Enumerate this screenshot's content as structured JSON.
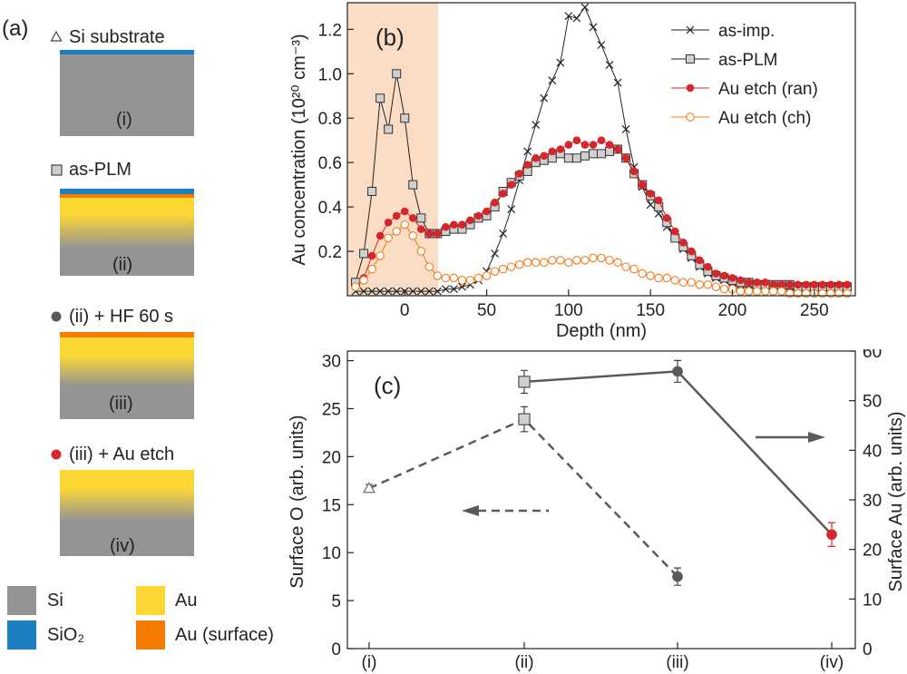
{
  "panel_a": {
    "label": "(a)",
    "samples": [
      {
        "marker": "triangle-open",
        "label": "Si substrate",
        "roman": "(i)"
      },
      {
        "marker": "square-gray",
        "label": "as-PLM",
        "roman": "(ii)"
      },
      {
        "marker": "circle-dark",
        "label": "(ii) + HF 60 s",
        "roman": "(iii)"
      },
      {
        "marker": "circle-red",
        "label": "(iii) + Au etch",
        "roman": "(iv)"
      }
    ],
    "legend": {
      "si": "Si",
      "au": "Au",
      "sio2": "SiO₂",
      "au_surface": "Au (surface)"
    }
  },
  "colors": {
    "si": "#949494",
    "sio2": "#1b7fc0",
    "au": "#fdd835",
    "au_surface": "#f57c00",
    "red": "#d7262b",
    "orange": "#f07c1a",
    "dark": "#5a5a5a",
    "shade": "#fbdcc4"
  },
  "chart_data": [
    {
      "type": "line",
      "panel_label": "(b)",
      "xlabel": "Depth (nm)",
      "ylabel": "Au concentration (10²⁰ cm⁻³)",
      "xlim": [
        -35,
        275
      ],
      "ylim": [
        0,
        1.32
      ],
      "xticks": [
        0,
        50,
        100,
        150,
        200,
        250
      ],
      "yticks": [
        0.2,
        0.4,
        0.6,
        0.8,
        1.0,
        1.2
      ],
      "xtick_labels": [
        "0",
        "50",
        "100",
        "150",
        "200",
        "250"
      ],
      "ytick_labels": [
        "0.2",
        "0.4",
        "0.6",
        "0.8",
        "1.0",
        "1.2"
      ],
      "shaded_region": [
        -35,
        20
      ],
      "legend_position": "top-right",
      "series": [
        {
          "name": "as-imp.",
          "marker": "x",
          "color": "#222222",
          "x": [
            -30,
            -25,
            -20,
            -15,
            -10,
            -5,
            0,
            5,
            10,
            15,
            20,
            25,
            30,
            35,
            40,
            45,
            50,
            55,
            60,
            65,
            70,
            75,
            80,
            85,
            90,
            95,
            100,
            105,
            110,
            115,
            120,
            125,
            130,
            135,
            140,
            145,
            150,
            155,
            160,
            165,
            170,
            175,
            180,
            185,
            190,
            195,
            200,
            205,
            210,
            215,
            220,
            225,
            230,
            235,
            240,
            245,
            250,
            255,
            260,
            265,
            270
          ],
          "values": [
            0.02,
            0.02,
            0.02,
            0.02,
            0.02,
            0.02,
            0.02,
            0.02,
            0.02,
            0.02,
            0.02,
            0.03,
            0.03,
            0.04,
            0.05,
            0.07,
            0.11,
            0.19,
            0.28,
            0.39,
            0.52,
            0.65,
            0.77,
            0.89,
            0.97,
            1.05,
            1.26,
            1.25,
            1.3,
            1.21,
            1.13,
            1.04,
            0.96,
            0.75,
            0.58,
            0.49,
            0.41,
            0.37,
            0.31,
            0.26,
            0.21,
            0.17,
            0.13,
            0.1,
            0.08,
            0.07,
            0.06,
            0.05,
            0.05,
            0.05,
            0.04,
            0.04,
            0.04,
            0.04,
            0.04,
            0.04,
            0.04,
            0.04,
            0.04,
            0.04,
            0.04
          ]
        },
        {
          "name": "as-PLM",
          "marker": "square",
          "color": "#222222",
          "x": [
            -30,
            -25,
            -20,
            -15,
            -10,
            -5,
            0,
            5,
            10,
            15,
            20,
            25,
            30,
            35,
            40,
            45,
            50,
            55,
            60,
            65,
            70,
            75,
            80,
            85,
            90,
            95,
            100,
            105,
            110,
            115,
            120,
            125,
            130,
            135,
            140,
            145,
            150,
            155,
            160,
            165,
            170,
            175,
            180,
            185,
            190,
            195,
            200,
            205,
            210,
            215,
            220,
            225,
            230,
            235,
            240,
            245,
            250,
            255,
            260,
            265,
            270
          ],
          "values": [
            0.06,
            0.19,
            0.47,
            0.89,
            0.75,
            1.0,
            0.8,
            0.5,
            0.35,
            0.28,
            0.28,
            0.29,
            0.3,
            0.3,
            0.32,
            0.35,
            0.36,
            0.4,
            0.47,
            0.51,
            0.54,
            0.56,
            0.6,
            0.61,
            0.62,
            0.64,
            0.62,
            0.62,
            0.63,
            0.64,
            0.64,
            0.65,
            0.66,
            0.62,
            0.55,
            0.5,
            0.45,
            0.4,
            0.33,
            0.26,
            0.22,
            0.18,
            0.14,
            0.11,
            0.09,
            0.08,
            0.07,
            0.06,
            0.06,
            0.05,
            0.05,
            0.05,
            0.05,
            0.05,
            0.04,
            0.04,
            0.04,
            0.04,
            0.04,
            0.04,
            0.04
          ]
        },
        {
          "name": "Au etch (ran)",
          "marker": "circle-filled",
          "color": "#d7262b",
          "x": [
            -30,
            -25,
            -20,
            -15,
            -10,
            -5,
            0,
            5,
            10,
            15,
            20,
            25,
            30,
            35,
            40,
            45,
            50,
            55,
            60,
            65,
            70,
            75,
            80,
            85,
            90,
            95,
            100,
            105,
            110,
            115,
            120,
            125,
            130,
            135,
            140,
            145,
            150,
            155,
            160,
            165,
            170,
            175,
            180,
            185,
            190,
            195,
            200,
            205,
            210,
            215,
            220,
            225,
            230,
            235,
            240,
            245,
            250,
            255,
            260,
            265,
            270
          ],
          "values": [
            0.04,
            0.08,
            0.18,
            0.27,
            0.33,
            0.36,
            0.38,
            0.35,
            0.3,
            0.28,
            0.28,
            0.31,
            0.32,
            0.32,
            0.34,
            0.36,
            0.38,
            0.42,
            0.46,
            0.5,
            0.55,
            0.59,
            0.62,
            0.63,
            0.65,
            0.66,
            0.68,
            0.7,
            0.68,
            0.68,
            0.7,
            0.68,
            0.66,
            0.62,
            0.56,
            0.5,
            0.46,
            0.43,
            0.35,
            0.29,
            0.24,
            0.2,
            0.16,
            0.13,
            0.1,
            0.09,
            0.08,
            0.07,
            0.06,
            0.06,
            0.06,
            0.05,
            0.05,
            0.05,
            0.05,
            0.05,
            0.05,
            0.05,
            0.05,
            0.05,
            0.05
          ]
        },
        {
          "name": "Au etch (ch)",
          "marker": "circle-open",
          "color": "#f07c1a",
          "x": [
            -30,
            -25,
            -20,
            -15,
            -10,
            -5,
            0,
            5,
            10,
            15,
            20,
            25,
            30,
            35,
            40,
            45,
            50,
            55,
            60,
            65,
            70,
            75,
            80,
            85,
            90,
            95,
            100,
            105,
            110,
            115,
            120,
            125,
            130,
            135,
            140,
            145,
            150,
            155,
            160,
            165,
            170,
            175,
            180,
            185,
            190,
            195,
            200,
            205,
            210,
            215,
            220,
            225,
            230,
            235,
            240,
            245,
            250,
            255,
            260,
            265,
            270
          ],
          "values": [
            0.04,
            0.07,
            0.12,
            0.18,
            0.26,
            0.29,
            0.32,
            0.27,
            0.2,
            0.13,
            0.09,
            0.08,
            0.08,
            0.07,
            0.07,
            0.08,
            0.09,
            0.11,
            0.12,
            0.13,
            0.14,
            0.15,
            0.15,
            0.15,
            0.16,
            0.16,
            0.15,
            0.16,
            0.16,
            0.17,
            0.17,
            0.16,
            0.15,
            0.13,
            0.12,
            0.1,
            0.09,
            0.08,
            0.08,
            0.07,
            0.06,
            0.06,
            0.05,
            0.05,
            0.04,
            0.03,
            0.03,
            0.02,
            0.02,
            0.02,
            0.02,
            0.02,
            0.02,
            0.01,
            0.01,
            0.01,
            0.01,
            0.01,
            0.01,
            0.01,
            0.01
          ]
        }
      ]
    },
    {
      "type": "line",
      "panel_label": "(c)",
      "categories": [
        "(i)",
        "(ii)",
        "(iii)",
        "(iv)"
      ],
      "ylabel_left": "Surface O (arb. units)",
      "ylabel_right": "Surface Au (arb. units)",
      "ylim_left": [
        0,
        31
      ],
      "ylim_right": [
        0,
        60
      ],
      "yticks_left": [
        0,
        5,
        10,
        15,
        20,
        25,
        30
      ],
      "yticks_right": [
        0,
        10,
        20,
        30,
        40,
        50,
        60
      ],
      "ytick_labels_left": [
        "0",
        "5",
        "10",
        "15",
        "20",
        "25",
        "30"
      ],
      "ytick_labels_right": [
        "0",
        "10",
        "20",
        "30",
        "40",
        "50",
        "60"
      ],
      "series": [
        {
          "name": "Surface O",
          "axis": "left",
          "linestyle": "dashed",
          "points": [
            {
              "category": "(i)",
              "value": 16.7,
              "err": 0.4,
              "marker": "triangle-open"
            },
            {
              "category": "(ii)",
              "value": 23.9,
              "err": 1.3,
              "marker": "square-gray"
            },
            {
              "category": "(iii)",
              "value": 7.5,
              "err": 0.9,
              "marker": "circle-dark"
            }
          ]
        },
        {
          "name": "Surface Au",
          "axis": "right",
          "linestyle": "solid",
          "points": [
            {
              "category": "(ii)",
              "value": 53.8,
              "err": 2.3,
              "marker": "square-gray"
            },
            {
              "category": "(iii)",
              "value": 55.9,
              "err": 2.2,
              "marker": "circle-dark"
            },
            {
              "category": "(iv)",
              "value": 23.0,
              "err": 2.4,
              "marker": "circle-red"
            }
          ]
        }
      ],
      "annotations": [
        {
          "name": "left-axis-arrow",
          "direction": "left",
          "style": "dashed"
        },
        {
          "name": "right-axis-arrow",
          "direction": "right",
          "style": "solid"
        }
      ]
    }
  ]
}
